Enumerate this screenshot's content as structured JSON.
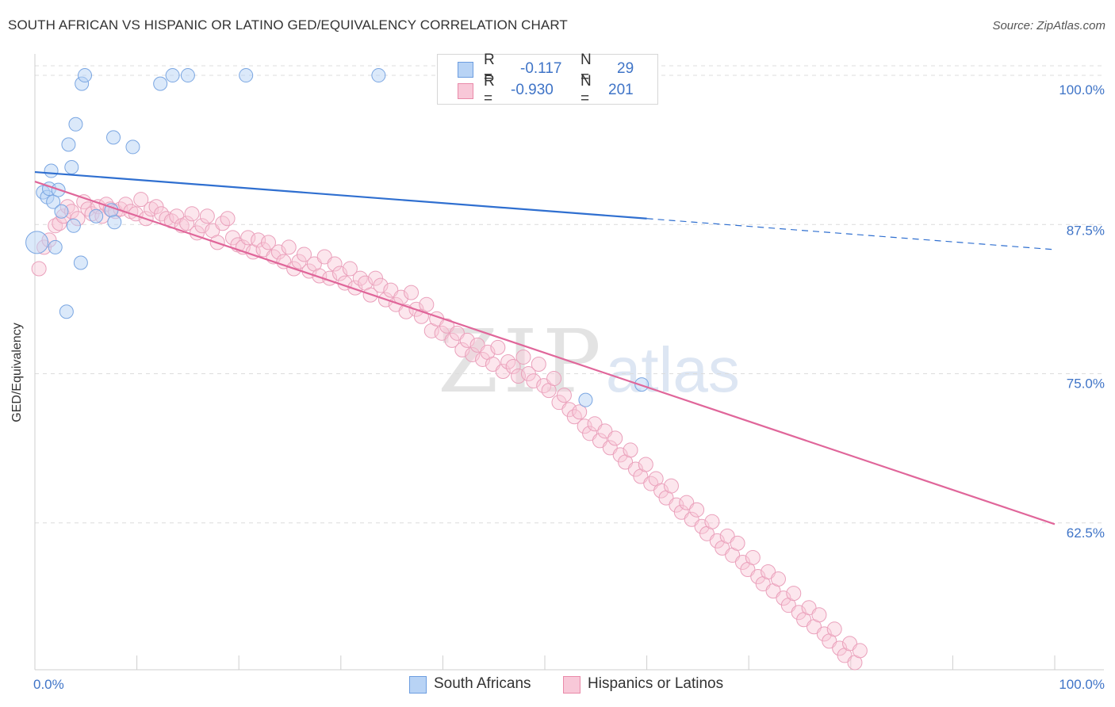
{
  "header": {
    "title": "SOUTH AFRICAN VS HISPANIC OR LATINO GED/EQUIVALENCY CORRELATION CHART",
    "source": "Source: ZipAtlas.com"
  },
  "watermark": {
    "main": "ZIP",
    "sub": "atlas"
  },
  "legend_top": {
    "rows": [
      {
        "r_label": "R =",
        "r_value": "-0.117",
        "n_label": "N =",
        "n_value": "29",
        "color": "#b8d3f5",
        "border": "#6c9de0"
      },
      {
        "r_label": "R =",
        "r_value": "-0.930",
        "n_label": "N =",
        "n_value": "201",
        "color": "#f8c8d8",
        "border": "#e98aa9"
      }
    ]
  },
  "legend_bottom": {
    "items": [
      {
        "label": "South Africans",
        "color": "#b8d3f5",
        "border": "#6c9de0"
      },
      {
        "label": "Hispanics or Latinos",
        "color": "#f8c8d8",
        "border": "#e98aa9"
      }
    ]
  },
  "chart_data": {
    "type": "scatter",
    "xlabel": "",
    "ylabel": "GED/Equivalency",
    "xlim": [
      0,
      100
    ],
    "ylim": [
      50.2,
      101
    ],
    "x_tick_labels": [
      "0.0%",
      "100.0%"
    ],
    "y_ticks": [
      62.5,
      75.0,
      87.5,
      100.0
    ],
    "y_tick_labels": [
      "62.5%",
      "75.0%",
      "87.5%",
      "100.0%"
    ],
    "grid": "horizontal dashed",
    "colors": {
      "south_africans": "#6c9de0",
      "hispanics": "#e98aa9",
      "blue_line": "#2f6fd0",
      "pink_line": "#e0669a"
    },
    "series": [
      {
        "name": "South Africans",
        "trend": {
          "x": [
            0,
            60,
            100
          ],
          "y": [
            91.9,
            88.0,
            85.4
          ],
          "solid_until": 60
        },
        "points": [
          [
            0.2,
            86.0
          ],
          [
            0.8,
            90.2
          ],
          [
            1.2,
            89.8
          ],
          [
            1.4,
            90.5
          ],
          [
            1.6,
            92.0
          ],
          [
            1.8,
            89.4
          ],
          [
            2.0,
            85.6
          ],
          [
            2.3,
            90.4
          ],
          [
            2.6,
            88.6
          ],
          [
            3.1,
            80.2
          ],
          [
            3.3,
            94.2
          ],
          [
            3.6,
            92.3
          ],
          [
            3.8,
            87.4
          ],
          [
            4.0,
            95.9
          ],
          [
            4.5,
            84.3
          ],
          [
            4.6,
            99.3
          ],
          [
            4.9,
            100.0
          ],
          [
            6.0,
            88.2
          ],
          [
            7.5,
            88.7
          ],
          [
            7.7,
            94.8
          ],
          [
            7.8,
            87.7
          ],
          [
            9.6,
            94.0
          ],
          [
            12.3,
            99.3
          ],
          [
            13.5,
            100.0
          ],
          [
            15.0,
            100.0
          ],
          [
            20.7,
            100.0
          ],
          [
            33.7,
            100.0
          ],
          [
            54.0,
            72.8
          ],
          [
            59.5,
            74.1
          ]
        ]
      },
      {
        "name": "Hispanics or Latinos",
        "trend": {
          "x": [
            0,
            100
          ],
          "y": [
            91.1,
            62.4
          ]
        },
        "points": [
          [
            0.4,
            83.8
          ],
          [
            0.9,
            85.6
          ],
          [
            1.4,
            86.2
          ],
          [
            2.0,
            87.4
          ],
          [
            2.4,
            87.6
          ],
          [
            2.8,
            88.2
          ],
          [
            3.2,
            89.0
          ],
          [
            3.6,
            88.6
          ],
          [
            4.2,
            88.0
          ],
          [
            4.8,
            89.4
          ],
          [
            5.2,
            88.8
          ],
          [
            5.6,
            88.4
          ],
          [
            6.2,
            89.0
          ],
          [
            6.6,
            88.2
          ],
          [
            7.0,
            89.2
          ],
          [
            7.4,
            88.8
          ],
          [
            7.9,
            88.6
          ],
          [
            8.4,
            88.8
          ],
          [
            8.9,
            89.2
          ],
          [
            9.4,
            88.6
          ],
          [
            9.9,
            88.4
          ],
          [
            10.4,
            89.6
          ],
          [
            10.9,
            88.0
          ],
          [
            11.4,
            88.8
          ],
          [
            11.9,
            89.0
          ],
          [
            12.4,
            88.4
          ],
          [
            12.9,
            88.0
          ],
          [
            13.4,
            87.8
          ],
          [
            13.9,
            88.2
          ],
          [
            14.4,
            87.4
          ],
          [
            14.9,
            87.6
          ],
          [
            15.4,
            88.4
          ],
          [
            15.9,
            86.8
          ],
          [
            16.4,
            87.4
          ],
          [
            16.9,
            88.2
          ],
          [
            17.4,
            87.0
          ],
          [
            17.9,
            86.0
          ],
          [
            18.4,
            87.6
          ],
          [
            18.9,
            88.0
          ],
          [
            19.4,
            86.4
          ],
          [
            19.9,
            85.8
          ],
          [
            20.4,
            85.6
          ],
          [
            20.9,
            86.4
          ],
          [
            21.4,
            85.2
          ],
          [
            21.9,
            86.2
          ],
          [
            22.4,
            85.4
          ],
          [
            22.9,
            86.0
          ],
          [
            23.4,
            84.8
          ],
          [
            23.9,
            85.2
          ],
          [
            24.4,
            84.4
          ],
          [
            24.9,
            85.6
          ],
          [
            25.4,
            83.8
          ],
          [
            25.9,
            84.4
          ],
          [
            26.4,
            85.0
          ],
          [
            26.9,
            83.6
          ],
          [
            27.4,
            84.2
          ],
          [
            27.9,
            83.2
          ],
          [
            28.4,
            84.8
          ],
          [
            28.9,
            83.0
          ],
          [
            29.4,
            84.2
          ],
          [
            29.9,
            83.4
          ],
          [
            30.4,
            82.6
          ],
          [
            30.9,
            83.8
          ],
          [
            31.4,
            82.2
          ],
          [
            31.9,
            83.0
          ],
          [
            32.4,
            82.6
          ],
          [
            32.9,
            81.6
          ],
          [
            33.4,
            83.0
          ],
          [
            33.9,
            82.4
          ],
          [
            34.4,
            81.2
          ],
          [
            34.9,
            82.0
          ],
          [
            35.4,
            80.8
          ],
          [
            35.9,
            81.4
          ],
          [
            36.4,
            80.2
          ],
          [
            36.9,
            81.8
          ],
          [
            37.4,
            80.4
          ],
          [
            37.9,
            79.8
          ],
          [
            38.4,
            80.8
          ],
          [
            38.9,
            78.6
          ],
          [
            39.4,
            79.6
          ],
          [
            39.9,
            78.4
          ],
          [
            40.4,
            79.0
          ],
          [
            40.9,
            77.8
          ],
          [
            41.4,
            78.4
          ],
          [
            41.9,
            77.0
          ],
          [
            42.4,
            77.8
          ],
          [
            42.9,
            76.6
          ],
          [
            43.4,
            77.4
          ],
          [
            43.9,
            76.2
          ],
          [
            44.4,
            76.8
          ],
          [
            44.9,
            75.8
          ],
          [
            45.4,
            77.2
          ],
          [
            45.9,
            75.2
          ],
          [
            46.4,
            76.0
          ],
          [
            46.9,
            75.6
          ],
          [
            47.4,
            74.8
          ],
          [
            47.9,
            76.4
          ],
          [
            48.4,
            75.0
          ],
          [
            48.9,
            74.4
          ],
          [
            49.4,
            75.8
          ],
          [
            49.9,
            74.0
          ],
          [
            50.4,
            73.6
          ],
          [
            50.9,
            74.6
          ],
          [
            51.4,
            72.6
          ],
          [
            51.9,
            73.2
          ],
          [
            52.4,
            72.0
          ],
          [
            52.9,
            71.4
          ],
          [
            53.4,
            71.8
          ],
          [
            53.9,
            70.6
          ],
          [
            54.4,
            70.0
          ],
          [
            54.9,
            70.8
          ],
          [
            55.4,
            69.4
          ],
          [
            55.9,
            70.2
          ],
          [
            56.4,
            68.8
          ],
          [
            56.9,
            69.6
          ],
          [
            57.4,
            68.2
          ],
          [
            57.9,
            67.6
          ],
          [
            58.4,
            68.6
          ],
          [
            58.9,
            67.0
          ],
          [
            59.4,
            66.4
          ],
          [
            59.9,
            67.4
          ],
          [
            60.4,
            65.8
          ],
          [
            60.9,
            66.2
          ],
          [
            61.4,
            65.2
          ],
          [
            61.9,
            64.6
          ],
          [
            62.4,
            65.6
          ],
          [
            62.9,
            64.0
          ],
          [
            63.4,
            63.4
          ],
          [
            63.9,
            64.2
          ],
          [
            64.4,
            62.8
          ],
          [
            64.9,
            63.6
          ],
          [
            65.4,
            62.2
          ],
          [
            65.9,
            61.6
          ],
          [
            66.4,
            62.6
          ],
          [
            66.9,
            61.0
          ],
          [
            67.4,
            60.4
          ],
          [
            67.9,
            61.4
          ],
          [
            68.4,
            59.8
          ],
          [
            68.9,
            60.8
          ],
          [
            69.4,
            59.2
          ],
          [
            69.9,
            58.6
          ],
          [
            70.4,
            59.6
          ],
          [
            70.9,
            58.0
          ],
          [
            71.4,
            57.4
          ],
          [
            71.9,
            58.4
          ],
          [
            72.4,
            56.8
          ],
          [
            72.9,
            57.8
          ],
          [
            73.4,
            56.2
          ],
          [
            73.9,
            55.6
          ],
          [
            74.4,
            56.6
          ],
          [
            74.9,
            55.0
          ],
          [
            75.4,
            54.4
          ],
          [
            75.9,
            55.4
          ],
          [
            76.4,
            53.8
          ],
          [
            76.9,
            54.8
          ],
          [
            77.4,
            53.2
          ],
          [
            77.9,
            52.6
          ],
          [
            78.4,
            53.6
          ],
          [
            78.9,
            52.0
          ],
          [
            79.4,
            51.4
          ],
          [
            79.9,
            52.4
          ],
          [
            80.4,
            50.8
          ],
          [
            80.9,
            51.8
          ]
        ]
      }
    ]
  }
}
